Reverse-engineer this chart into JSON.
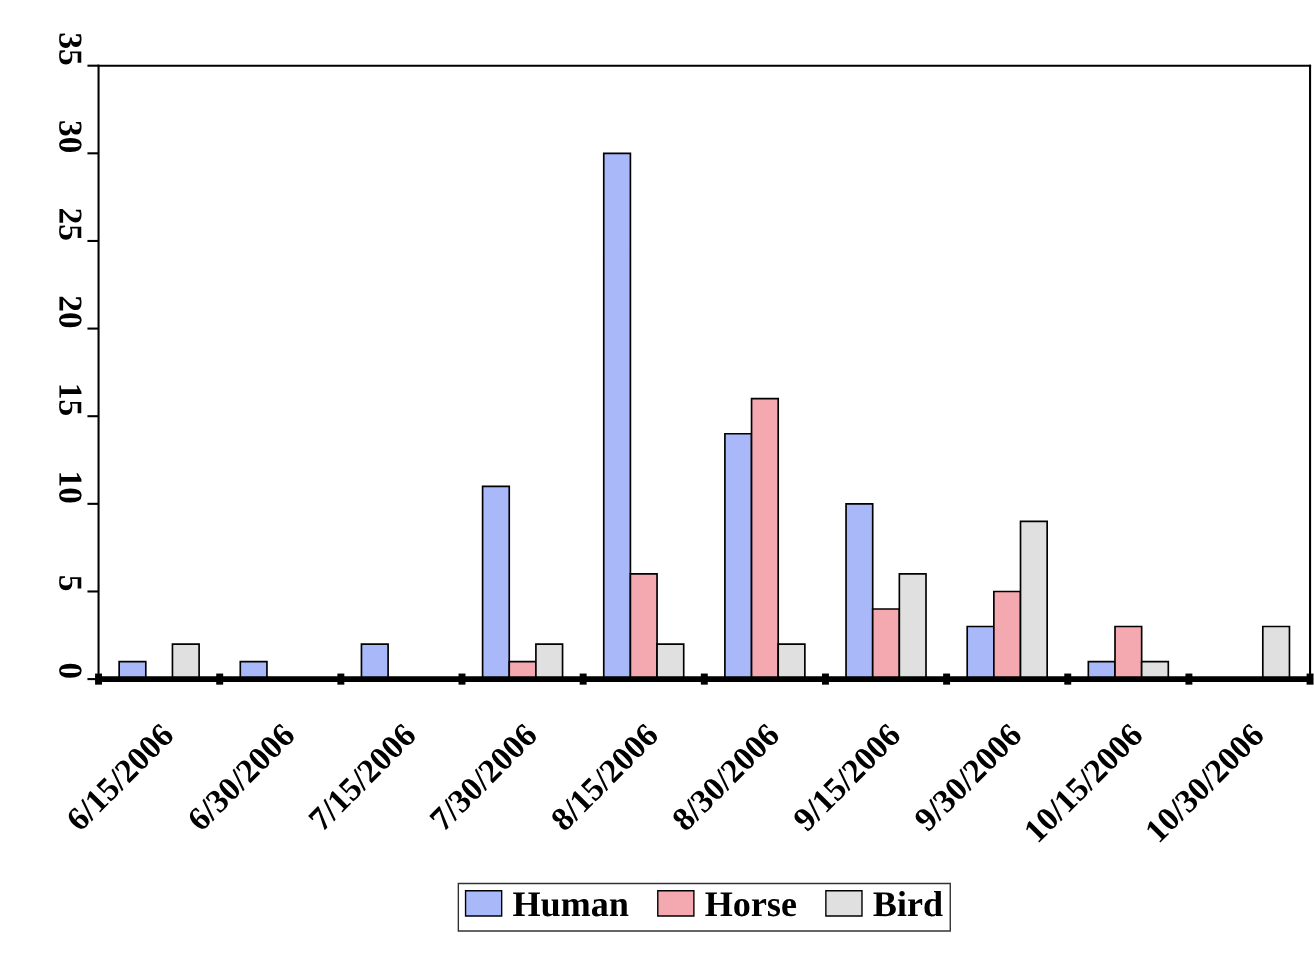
{
  "chart_data": {
    "type": "bar",
    "categories": [
      "6/15/2006",
      "6/30/2006",
      "7/15/2006",
      "7/30/2006",
      "8/15/2006",
      "8/30/2006",
      "9/15/2006",
      "9/30/2006",
      "10/15/2006",
      "10/30/2006"
    ],
    "series": [
      {
        "name": "Human",
        "color": "#a8b8f8",
        "values": [
          1,
          1,
          2,
          11,
          30,
          14,
          10,
          3,
          1,
          null
        ]
      },
      {
        "name": "Horse",
        "color": "#f4a8b0",
        "values": [
          null,
          null,
          null,
          1,
          6,
          16,
          4,
          5,
          3,
          null
        ]
      },
      {
        "name": "Bird",
        "color": "#e0e0e0",
        "values": [
          2,
          null,
          null,
          2,
          2,
          2,
          6,
          9,
          1,
          3
        ]
      }
    ],
    "ylim": [
      0,
      35
    ],
    "yticks": [
      0,
      5,
      10,
      15,
      20,
      25,
      30,
      35
    ],
    "grid": false,
    "legend": "bottom"
  }
}
